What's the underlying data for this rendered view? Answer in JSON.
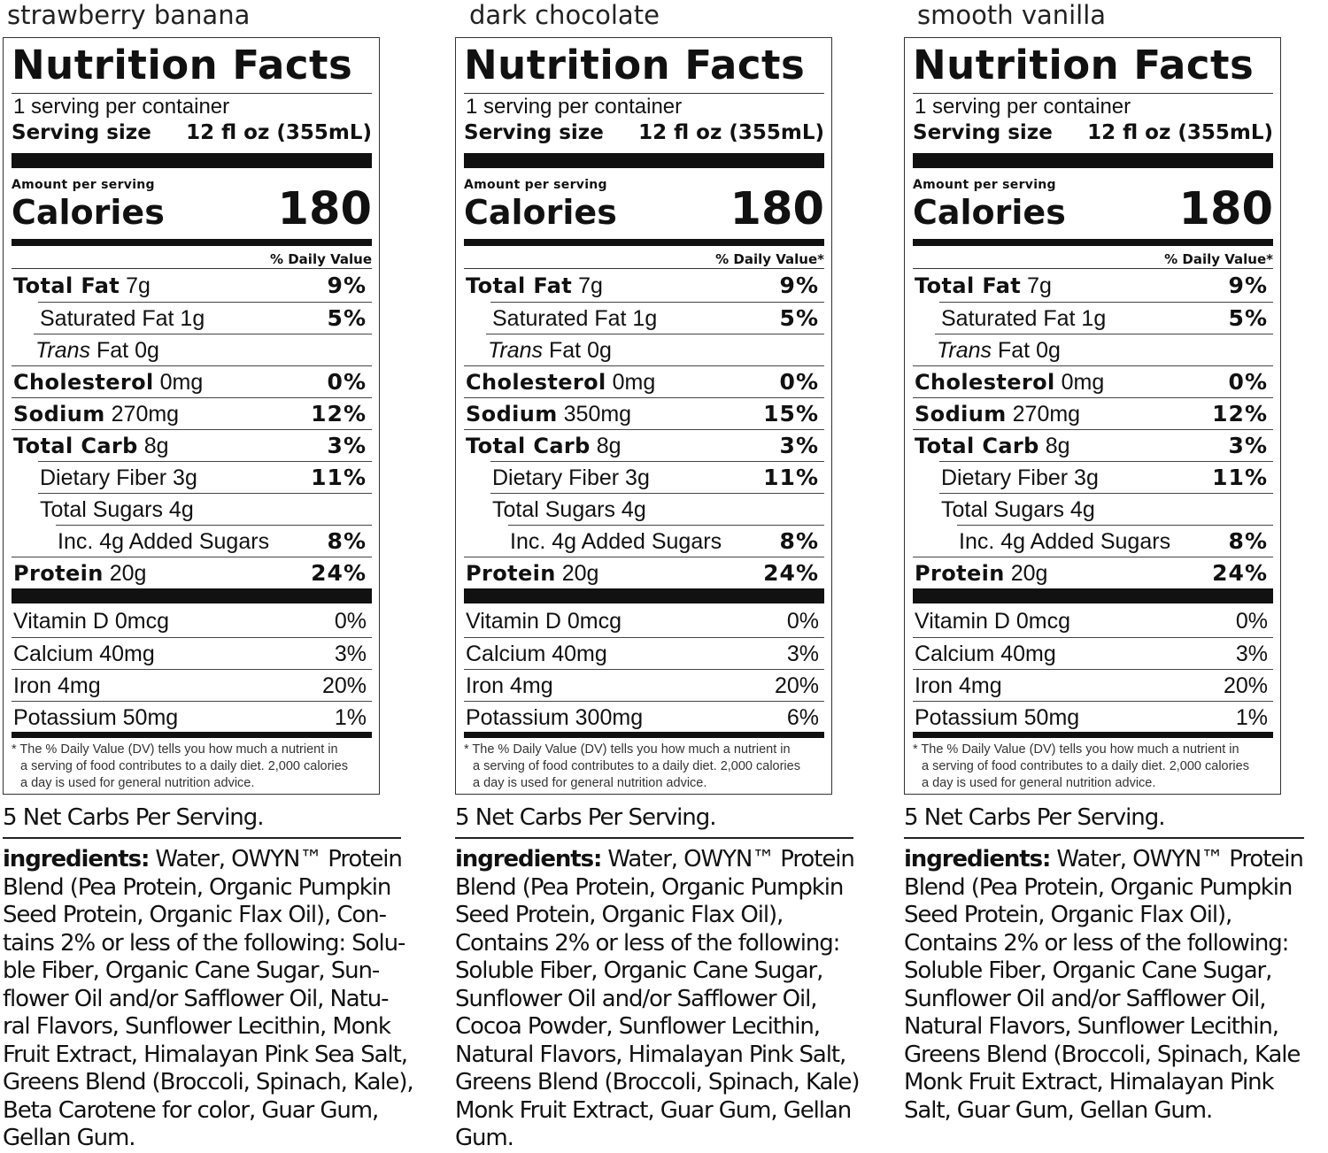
{
  "panels": [
    {
      "flavor": "strawberry banana",
      "title": "Nutrition Facts",
      "servings": "1 serving per container",
      "serving_size_label": "Serving size",
      "serving_size_value": "12 fl oz (355mL)",
      "amount_per_serving": "Amount per serving",
      "calories_label": "Calories",
      "calories": "180",
      "dv_header": "% Daily Value",
      "nutrients": [
        {
          "bold": "Total Fat",
          "italic": "",
          "rest": " 7g",
          "pct": "9%"
        },
        {
          "bold": "",
          "italic": "",
          "rest": "Saturated Fat 1g",
          "pct": "5%"
        },
        {
          "bold": "",
          "italic": "Trans",
          "rest": " Fat 0g",
          "pct": ""
        },
        {
          "bold": "Cholesterol",
          "italic": "",
          "rest": " 0mg",
          "pct": "0%"
        },
        {
          "bold": "Sodium",
          "italic": "",
          "rest": " 270mg",
          "pct": "12%"
        },
        {
          "bold": "Total Carb",
          "italic": "",
          "rest": " 8g",
          "pct": "3%"
        },
        {
          "bold": "",
          "italic": "",
          "rest": "Dietary Fiber 3g",
          "pct": "11%"
        },
        {
          "bold": "",
          "italic": "",
          "rest": "Total Sugars 4g",
          "pct": ""
        },
        {
          "bold": "",
          "italic": "",
          "rest": "Inc. 4g Added Sugars",
          "pct": "8%"
        },
        {
          "bold": "Protein",
          "italic": "",
          "rest": " 20g",
          "pct": "24%"
        }
      ],
      "vitamins": [
        {
          "name": "Vitamin D 0mcg",
          "pct": "0%"
        },
        {
          "name": "Calcium 40mg",
          "pct": "3%"
        },
        {
          "name": "Iron 4mg",
          "pct": "20%"
        },
        {
          "name": "Potassium 50mg",
          "pct": "1%"
        }
      ],
      "footnote": [
        "* The % Daily Value (DV) tells you how much a nutrient in",
        "a serving of food contributes to a daily diet. 2,000 calories",
        "a day is used for general nutrition advice."
      ],
      "net_carbs": "5 Net Carbs Per Serving.",
      "ingredients_label": "ingredients:",
      "ingredients_lines": [
        " Water, OWYN™ Protein",
        "Blend (Pea Protein, Organic Pumpkin",
        "Seed Protein, Organic Flax Oil),  Con-",
        "tains 2% or less of the following: Solu-",
        "ble Fiber, Organic Cane Sugar, Sun-",
        "flower Oil and/or Safflower Oil, Natu-",
        "ral Flavors, Sunflower Lecithin, Monk",
        "Fruit Extract, Himalayan Pink Sea Salt,",
        "Greens Blend (Broccoli, Spinach, Kale),",
        "Beta Carotene for color, Guar Gum,",
        "Gellan Gum."
      ]
    },
    {
      "flavor": "dark chocolate",
      "title": "Nutrition Facts",
      "servings": "1 serving per container",
      "serving_size_label": "Serving size",
      "serving_size_value": "12 fl oz (355mL)",
      "amount_per_serving": "Amount per serving",
      "calories_label": "Calories",
      "calories": "180",
      "dv_header": "% Daily Value*",
      "nutrients": [
        {
          "bold": "Total Fat",
          "italic": "",
          "rest": " 7g",
          "pct": "9%"
        },
        {
          "bold": "",
          "italic": "",
          "rest": "Saturated Fat 1g",
          "pct": "5%"
        },
        {
          "bold": "",
          "italic": "Trans",
          "rest": " Fat 0g",
          "pct": ""
        },
        {
          "bold": "Cholesterol",
          "italic": "",
          "rest": " 0mg",
          "pct": "0%"
        },
        {
          "bold": "Sodium",
          "italic": "",
          "rest": " 350mg",
          "pct": "15%"
        },
        {
          "bold": "Total Carb",
          "italic": "",
          "rest": " 8g",
          "pct": "3%"
        },
        {
          "bold": "",
          "italic": "",
          "rest": "Dietary Fiber 3g",
          "pct": "11%"
        },
        {
          "bold": "",
          "italic": "",
          "rest": "Total Sugars 4g",
          "pct": ""
        },
        {
          "bold": "",
          "italic": "",
          "rest": "Inc. 4g Added Sugars",
          "pct": "8%"
        },
        {
          "bold": "Protein",
          "italic": "",
          "rest": " 20g",
          "pct": "24%"
        }
      ],
      "vitamins": [
        {
          "name": "Vitamin D 0mcg",
          "pct": "0%"
        },
        {
          "name": "Calcium 40mg",
          "pct": "3%"
        },
        {
          "name": "Iron 4mg",
          "pct": "20%"
        },
        {
          "name": "Potassium 300mg",
          "pct": "6%"
        }
      ],
      "footnote": [
        "* The % Daily Value (DV) tells you how much a nutrient in",
        "a serving of food contributes to a daily diet. 2,000 calories",
        "a day is used for general nutrition advice."
      ],
      "net_carbs": "5 Net Carbs Per Serving.",
      "ingredients_label": "ingredients:",
      "ingredients_lines": [
        " Water, OWYN™ Protein",
        "Blend (Pea Protein, Organic Pumpkin",
        "Seed Protein, Organic Flax Oil),",
        "Contains 2% or less of the following:",
        "Soluble Fiber, Organic Cane Sugar,",
        "Sunflower Oil and/or Safflower Oil,",
        "Cocoa Powder, Sunflower Lecithin,",
        "Natural Flavors, Himalayan Pink Salt,",
        "Greens Blend (Broccoli, Spinach, Kale)",
        "Monk Fruit Extract, Guar Gum, Gellan",
        "Gum."
      ]
    },
    {
      "flavor": "smooth vanilla",
      "title": "Nutrition Facts",
      "servings": "1 serving per container",
      "serving_size_label": "Serving size",
      "serving_size_value": "12 fl oz (355mL)",
      "amount_per_serving": "Amount per serving",
      "calories_label": "Calories",
      "calories": "180",
      "dv_header": "% Daily Value*",
      "nutrients": [
        {
          "bold": "Total Fat",
          "italic": "",
          "rest": " 7g",
          "pct": "9%"
        },
        {
          "bold": "",
          "italic": "",
          "rest": "Saturated Fat 1g",
          "pct": "5%"
        },
        {
          "bold": "",
          "italic": "Trans",
          "rest": " Fat 0g",
          "pct": ""
        },
        {
          "bold": "Cholesterol",
          "italic": "",
          "rest": " 0mg",
          "pct": "0%"
        },
        {
          "bold": "Sodium",
          "italic": "",
          "rest": " 270mg",
          "pct": "12%"
        },
        {
          "bold": "Total Carb",
          "italic": "",
          "rest": " 8g",
          "pct": "3%"
        },
        {
          "bold": "",
          "italic": "",
          "rest": "Dietary Fiber 3g",
          "pct": "11%"
        },
        {
          "bold": "",
          "italic": "",
          "rest": "Total Sugars 4g",
          "pct": ""
        },
        {
          "bold": "",
          "italic": "",
          "rest": "Inc. 4g Added Sugars",
          "pct": "8%"
        },
        {
          "bold": "Protein",
          "italic": "",
          "rest": " 20g",
          "pct": "24%"
        }
      ],
      "vitamins": [
        {
          "name": "Vitamin D 0mcg",
          "pct": "0%"
        },
        {
          "name": "Calcium 40mg",
          "pct": "3%"
        },
        {
          "name": "Iron 4mg",
          "pct": "20%"
        },
        {
          "name": "Potassium 50mg",
          "pct": "1%"
        }
      ],
      "footnote": [
        "* The % Daily Value (DV) tells you how much a nutrient in",
        "a serving of food contributes to a daily diet. 2,000 calories",
        "a day is used for general nutrition advice."
      ],
      "net_carbs": "5 Net Carbs Per Serving.",
      "ingredients_label": "ingredients:",
      "ingredients_lines": [
        " Water, OWYN™ Protein",
        "Blend (Pea Protein, Organic Pumpkin",
        "Seed Protein, Organic Flax Oil),",
        "Contains 2% or less of the following:",
        "Soluble Fiber, Organic Cane Sugar,",
        "Sunflower Oil and/or Safflower Oil,",
        "Natural Flavors, Sunflower Lecithin,",
        "Greens Blend (Broccoli, Spinach, Kale",
        "Monk Fruit Extract, Himalayan Pink",
        "Salt, Guar Gum, Gellan Gum."
      ]
    }
  ]
}
